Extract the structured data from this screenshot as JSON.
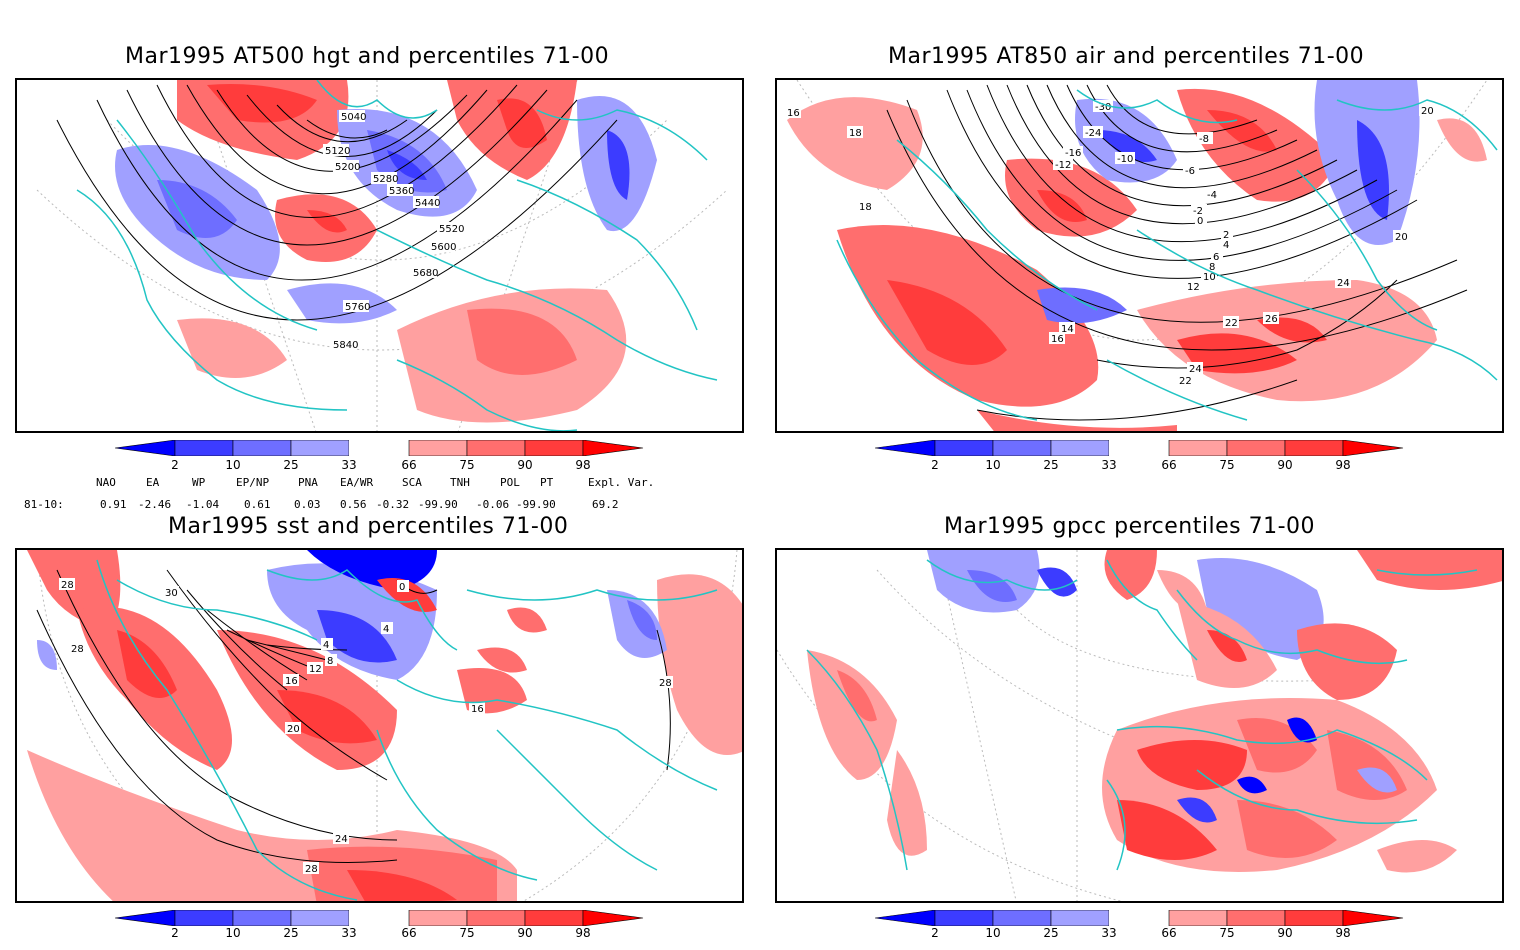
{
  "panels": [
    {
      "title": "Mar1995 AT500 hgt and percentiles 71-00",
      "contour_labels": [
        "5040",
        "5120",
        "5200",
        "5280",
        "5360",
        "5440",
        "5520",
        "5600",
        "5680",
        "5760",
        "5840"
      ]
    },
    {
      "title": "Mar1995 AT850 air and percentiles 71-00",
      "contour_labels": [
        "-30",
        "-24",
        "-16",
        "-12",
        "-10",
        "-8",
        "-6",
        "-4",
        "-2",
        "0",
        "2",
        "4",
        "6",
        "8",
        "10",
        "12",
        "14",
        "16",
        "16",
        "18",
        "18",
        "20",
        "20",
        "22",
        "22",
        "24",
        "24",
        "26"
      ]
    },
    {
      "title": "Mar1995 sst and percentiles 71-00",
      "contour_labels": [
        "28",
        "28",
        "30",
        "0",
        "4",
        "4",
        "8",
        "12",
        "16",
        "16",
        "20",
        "24",
        "28",
        "28"
      ]
    },
    {
      "title": "Mar1995 gpcc percentiles 71-00",
      "contour_labels": []
    }
  ],
  "colorbar": {
    "labels": [
      "2",
      "10",
      "25",
      "33",
      "66",
      "75",
      "90",
      "98"
    ],
    "colors": [
      "#0000ff",
      "#3c3cff",
      "#6e6eff",
      "#a0a0ff",
      "#ffffff",
      "#ffa0a0",
      "#ff6e6e",
      "#ff3c3c",
      "#ff0000"
    ]
  },
  "indices": {
    "headers": [
      "NAO",
      "EA",
      "WP",
      "EP/NP",
      "PNA",
      "EA/WR",
      "SCA",
      "TNH",
      "POL",
      "PT",
      "Expl. Var."
    ],
    "row_label": "81-10:",
    "values": [
      "0.91",
      "-2.46",
      "-1.04",
      "0.61",
      "0.03",
      "0.56",
      "-0.32",
      "-99.90",
      "-0.06",
      "-99.90",
      "69.2"
    ]
  }
}
